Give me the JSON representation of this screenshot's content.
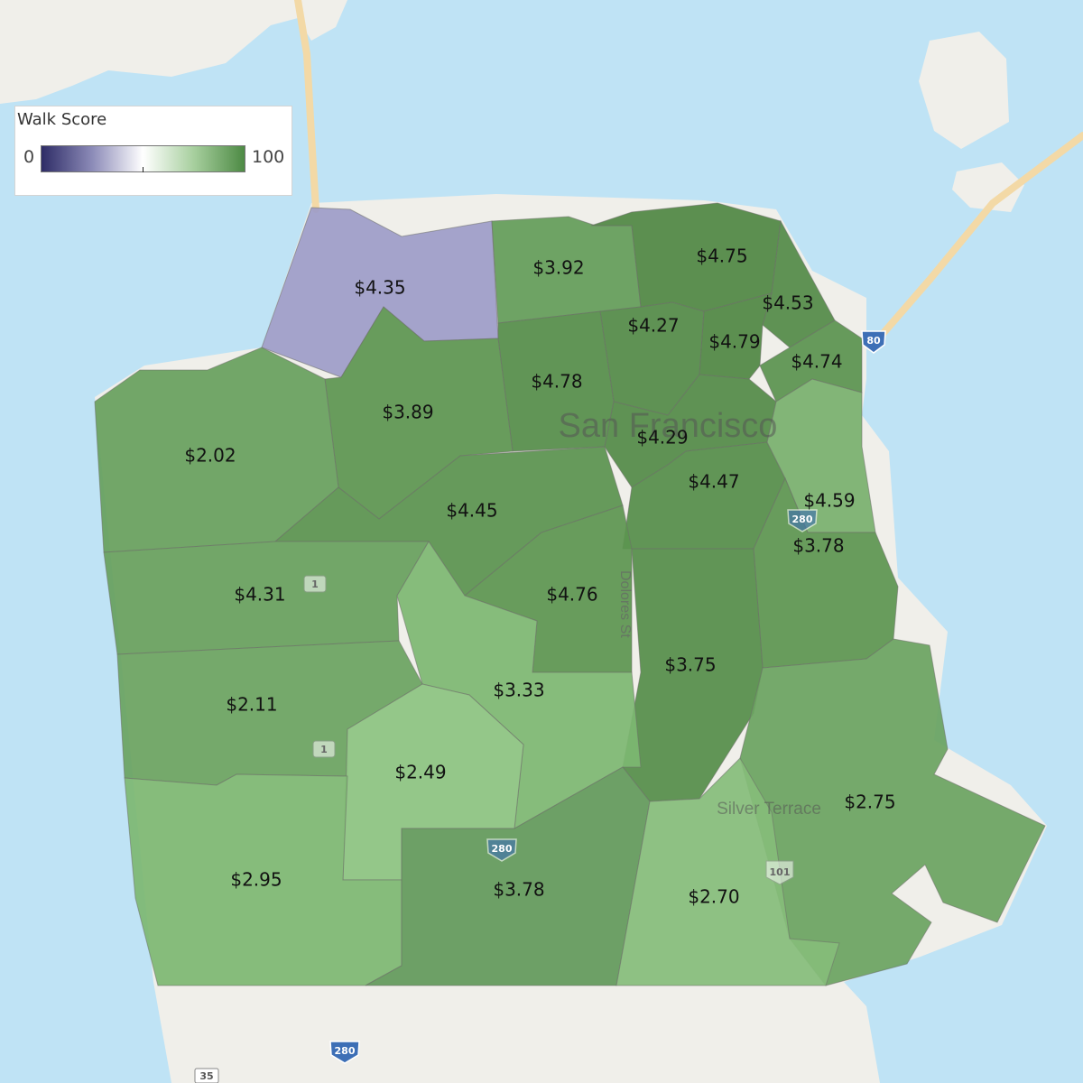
{
  "legend": {
    "title": "Walk Score",
    "min_label": "0",
    "max_label": "100",
    "gradient_colors": [
      "#2e2c66",
      "#8c8bb8",
      "#ffffff",
      "#a7cf9e",
      "#4d8a44"
    ]
  },
  "map_labels": {
    "city": "San Francisco",
    "neighborhood": "Silver Terrace",
    "street": "Dolores St"
  },
  "road_shields": [
    {
      "name": "highway-80-shield",
      "label": "80"
    },
    {
      "name": "highway-280-shield-1",
      "label": "280"
    },
    {
      "name": "highway-280-shield-2",
      "label": "280"
    },
    {
      "name": "highway-280-shield-3",
      "label": "280"
    },
    {
      "name": "highway-1-shield-1",
      "label": "1"
    },
    {
      "name": "highway-1-shield-2",
      "label": "1"
    },
    {
      "name": "highway-101-shield",
      "label": "101"
    },
    {
      "name": "highway-35-shield",
      "label": "35"
    }
  ],
  "regions": [
    {
      "price": "$4.35",
      "color": "#9d9cc8"
    },
    {
      "price": "$3.92",
      "color": "#639c58"
    },
    {
      "price": "$4.75",
      "color": "#4f8742"
    },
    {
      "price": "$4.53",
      "color": "#528a46"
    },
    {
      "price": "$4.27",
      "color": "#528a46"
    },
    {
      "price": "$4.79",
      "color": "#4f8742"
    },
    {
      "price": "$4.74",
      "color": "#5a924e"
    },
    {
      "price": "$4.78",
      "color": "#558d49"
    },
    {
      "price": "$3.89",
      "color": "#5c954f"
    },
    {
      "price": "$2.02",
      "color": "#67a05c"
    },
    {
      "price": "$4.29",
      "color": "#528a46"
    },
    {
      "price": "$4.47",
      "color": "#558d49"
    },
    {
      "price": "$4.59",
      "color": "#78b06c"
    },
    {
      "price": "$4.45",
      "color": "#5a924e"
    },
    {
      "price": "$3.78",
      "color": "#5c954f"
    },
    {
      "price": "$4.31",
      "color": "#67a05c"
    },
    {
      "price": "$4.76",
      "color": "#5c954f"
    },
    {
      "price": "$3.75",
      "color": "#558d49"
    },
    {
      "price": "$3.33",
      "color": "#7db771"
    },
    {
      "price": "$2.11",
      "color": "#6aa35f"
    },
    {
      "price": "$2.49",
      "color": "#8cc380"
    },
    {
      "price": "$2.75",
      "color": "#6aa35f"
    },
    {
      "price": "$2.95",
      "color": "#7db771"
    },
    {
      "price": "$3.78",
      "color": "#62995a"
    },
    {
      "price": "$2.70",
      "color": "#86bd7a"
    }
  ]
}
